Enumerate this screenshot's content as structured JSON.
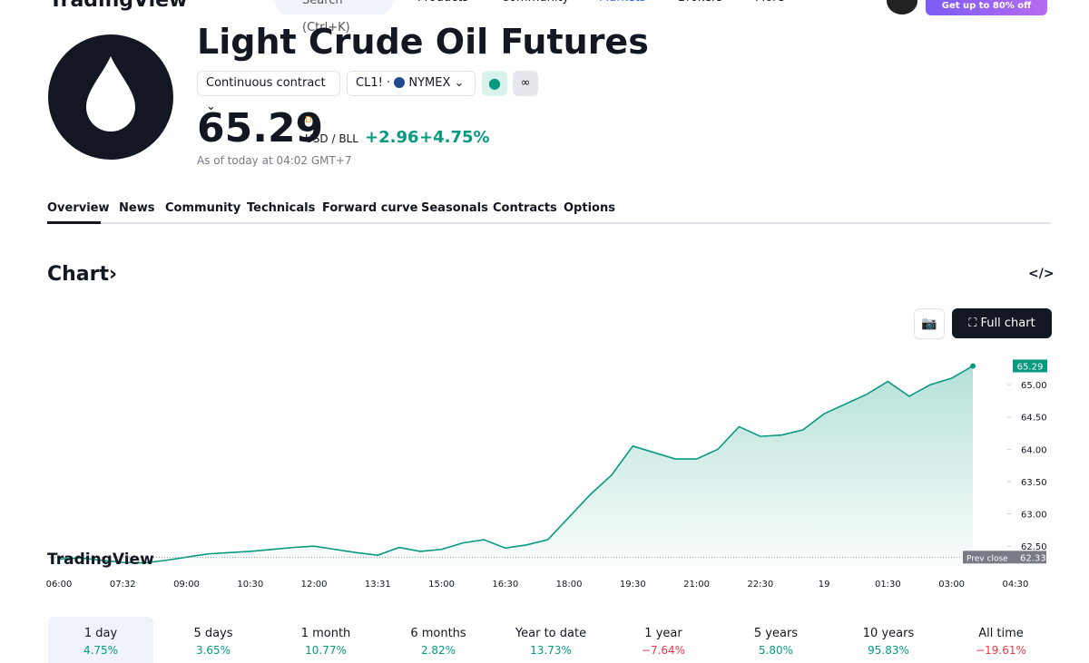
{
  "nav": {
    "logo": "TradingView",
    "search": "Search (Ctrl+K)",
    "items": [
      "Products",
      "Community",
      "Markets",
      "Brokers",
      "More"
    ],
    "promo": "Get up to 80% off"
  },
  "header": {
    "title": "Light Crude Oil Futures",
    "contract": "Continuous contract",
    "symbol": "CL1!",
    "exchange": "NYMEX",
    "price": "65.29",
    "price_suffix": "D",
    "currency": "USD / BLL",
    "change": "+2.96",
    "change_pct": "+4.75%",
    "as_of": "As of today at 04:02 GMT+7"
  },
  "tabs": [
    "Overview",
    "News",
    "Community",
    "Technicals",
    "Forward curve",
    "Seasonals",
    "Contracts",
    "Options"
  ],
  "section_title": "Chart",
  "full_chart": "Full chart",
  "chart_data": {
    "type": "line",
    "watermark": "TradingView",
    "categories": [
      "06:00",
      null,
      null,
      "07:32",
      null,
      null,
      "09:00",
      null,
      null,
      "10:30",
      null,
      null,
      "12:00",
      null,
      null,
      "13:31",
      null,
      null,
      "15:00",
      null,
      null,
      "16:30",
      null,
      null,
      "18:00",
      null,
      null,
      "19:30",
      null,
      null,
      "21:00",
      null,
      null,
      "22:30",
      null,
      null,
      "19",
      null,
      null,
      "01:30",
      null,
      null,
      "03:00",
      null,
      null,
      "04:30"
    ],
    "series": [
      {
        "name": "CL1!",
        "color": "#089981",
        "values": [
          62.3,
          62.32,
          62.28,
          62.25,
          62.24,
          62.28,
          62.33,
          62.38,
          62.4,
          62.42,
          62.45,
          62.48,
          62.5,
          62.45,
          62.4,
          62.36,
          62.48,
          62.42,
          62.45,
          62.55,
          62.6,
          62.47,
          62.52,
          62.6,
          62.95,
          63.3,
          63.6,
          64.05,
          63.95,
          63.85,
          63.85,
          64.0,
          64.35,
          64.2,
          64.22,
          64.3,
          64.55,
          64.7,
          64.85,
          65.05,
          64.82,
          65.0,
          65.1,
          65.29,
          null,
          null
        ]
      }
    ],
    "ylim": [
      62.18,
      65.76
    ],
    "yticks": [
      {
        "value": 62.5,
        "label": "62.50"
      },
      {
        "value": 63,
        "label": "63.00"
      },
      {
        "value": 63.5,
        "label": "63.50"
      },
      {
        "value": 64,
        "label": "64.00"
      },
      {
        "value": 64.5,
        "label": "64.50"
      },
      {
        "value": 65,
        "label": "65.00"
      }
    ],
    "prev_close": {
      "label": "Prev close",
      "value": 62.33
    }
  },
  "periods": [
    {
      "label": "1 day",
      "change": "4.75%",
      "color": "#089981"
    },
    {
      "label": "5 days",
      "change": "3.65%",
      "color": "#089981"
    },
    {
      "label": "1 month",
      "change": "10.77%",
      "color": "#089981"
    },
    {
      "label": "6 months",
      "change": "2.82%",
      "color": "#089981"
    },
    {
      "label": "Year to date",
      "change": "13.73%",
      "color": "#089981"
    },
    {
      "label": "1 year",
      "change": "−7.64%",
      "color": "#f23645"
    },
    {
      "label": "5 years",
      "change": "5.80%",
      "color": "#089981"
    },
    {
      "label": "10 years",
      "change": "95.83%",
      "color": "#089981"
    },
    {
      "label": "All time",
      "change": "−19.61%",
      "color": "#f23645"
    }
  ]
}
